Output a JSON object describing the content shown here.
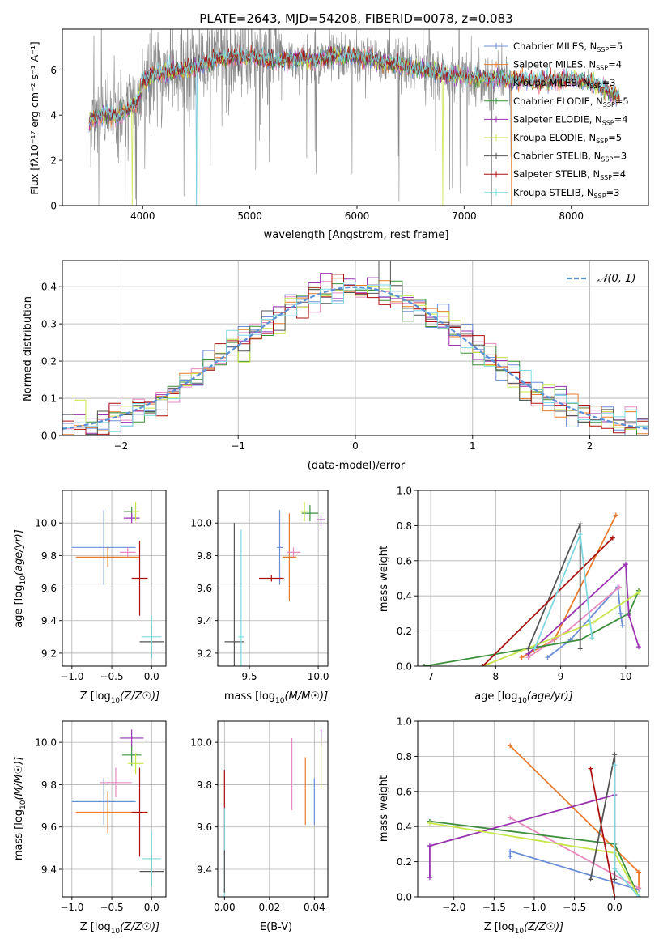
{
  "colors": {
    "chabrier_miles": "#6c8ed8",
    "salpeter_miles": "#e87b2c",
    "kroupa_miles": "#e88ac0",
    "chabrier_elodie": "#3d8f3d",
    "salpeter_elodie": "#9933b0",
    "kroupa_elodie": "#c8e64a",
    "chabrier_stelib": "#555555",
    "salpeter_stelib": "#aa1111",
    "kroupa_stelib": "#7fd8e0",
    "normal_curve": "#5b8fd6",
    "data_grey": "#888888",
    "grid": "#b0b0b0"
  },
  "chart_data": [
    {
      "id": "spectrum",
      "type": "line",
      "title": "PLATE=2643, MJD=54208, FIBERID=0078, z=0.083",
      "xlabel": "wavelength [Angstrom, rest frame]",
      "ylabel": "Flux [fλ10⁻¹⁷ erg cm⁻² s⁻¹ A⁻¹]",
      "xlim": [
        3250,
        8720
      ],
      "ylim": [
        0,
        7.8
      ],
      "xticks": [
        "4000",
        "5000",
        "6000",
        "7000",
        "8000"
      ],
      "yticks": [
        "0",
        "2",
        "4",
        "6"
      ],
      "grid": false,
      "legend_position": "right",
      "legend": [
        {
          "base": "Chabrier MILES, N",
          "sub": "SSP",
          "eq": "=5",
          "color": "chabrier_miles"
        },
        {
          "base": "Salpeter MILES, N",
          "sub": "SSP",
          "eq": "=4",
          "color": "salpeter_miles"
        },
        {
          "base": "Kroupa MILES, N",
          "sub": "SSP",
          "eq": "=3",
          "color": "kroupa_miles"
        },
        {
          "base": "Chabrier ELODIE, N",
          "sub": "SSP",
          "eq": "=5",
          "color": "chabrier_elodie"
        },
        {
          "base": "Salpeter ELODIE, N",
          "sub": "SSP",
          "eq": "=4",
          "color": "salpeter_elodie"
        },
        {
          "base": "Kroupa ELODIE, N",
          "sub": "SSP",
          "eq": "=5",
          "color": "kroupa_elodie"
        },
        {
          "base": "Chabrier STELIB, N",
          "sub": "SSP",
          "eq": "=3",
          "color": "chabrier_stelib"
        },
        {
          "base": "Salpeter STELIB, N",
          "sub": "SSP",
          "eq": "=4",
          "color": "salpeter_stelib"
        },
        {
          "base": "Kroupa STELIB, N",
          "sub": "SSP",
          "eq": "=3",
          "color": "kroupa_stelib"
        }
      ],
      "continuum": [
        [
          3500,
          3.7
        ],
        [
          3600,
          4.0
        ],
        [
          3700,
          4.0
        ],
        [
          3800,
          4.0
        ],
        [
          3900,
          4.4
        ],
        [
          3950,
          4.5
        ],
        [
          4000,
          5.5
        ],
        [
          4100,
          5.8
        ],
        [
          4300,
          5.9
        ],
        [
          4500,
          6.1
        ],
        [
          4700,
          6.5
        ],
        [
          4800,
          6.5
        ],
        [
          5000,
          6.6
        ],
        [
          5200,
          6.4
        ],
        [
          5400,
          6.5
        ],
        [
          5600,
          6.4
        ],
        [
          5800,
          6.6
        ],
        [
          6000,
          6.6
        ],
        [
          6200,
          6.4
        ],
        [
          6400,
          6.2
        ],
        [
          6600,
          6.0
        ],
        [
          6800,
          5.8
        ],
        [
          7000,
          5.7
        ],
        [
          7200,
          5.6
        ],
        [
          7400,
          5.6
        ],
        [
          7600,
          5.5
        ],
        [
          7800,
          5.5
        ],
        [
          8000,
          5.6
        ],
        [
          8200,
          5.4
        ],
        [
          8450,
          4.8
        ]
      ]
    },
    {
      "id": "residuals",
      "type": "histogram",
      "xlabel": "(data-model)/error",
      "ylabel": "Normed distribution",
      "xlim": [
        -2.5,
        2.5
      ],
      "ylim": [
        0,
        0.47
      ],
      "xticks": [
        "−2",
        "−1",
        "0",
        "1",
        "2"
      ],
      "yticks": [
        "0.0",
        "0.1",
        "0.2",
        "0.3",
        "0.4"
      ],
      "grid": true,
      "legend_position": "top-right",
      "legend_label": "𝒩(0, 1)",
      "bin_width": 0.1
    },
    {
      "id": "age_vs_Z",
      "type": "scatter",
      "xlabel_base": "Z [log",
      "xlabel_sub": "10",
      "xlabel_rest": "(Z/Z☉)]",
      "ylabel_base": "age  [log",
      "ylabel_sub": "10",
      "ylabel_rest": "(age/yr)]",
      "xlim": [
        -1.12,
        0.18
      ],
      "ylim": [
        9.12,
        10.2
      ],
      "xticks": [
        "−1.0",
        "−0.5",
        "0.0"
      ],
      "yticks": [
        "9.2",
        "9.4",
        "9.6",
        "9.8",
        "10.0"
      ],
      "grid": true,
      "points": [
        {
          "color": "chabrier_miles",
          "x": -0.6,
          "xe": 0.4,
          "y": 9.85,
          "ye": 0.23
        },
        {
          "color": "salpeter_miles",
          "x": -0.55,
          "xe": 0.4,
          "y": 9.79,
          "ye": 0.06
        },
        {
          "color": "kroupa_miles",
          "x": -0.3,
          "xe": 0.1,
          "y": 9.82,
          "ye": 0.03
        },
        {
          "color": "chabrier_elodie",
          "x": -0.25,
          "xe": 0.1,
          "y": 10.07,
          "ye": 0.03
        },
        {
          "color": "salpeter_elodie",
          "x": -0.25,
          "xe": 0.1,
          "y": 10.03,
          "ye": 0.03
        },
        {
          "color": "kroupa_elodie",
          "x": -0.2,
          "xe": 0.05,
          "y": 10.07,
          "ye": 0.06
        },
        {
          "color": "chabrier_stelib",
          "x": 0.0,
          "xe": 0.15,
          "y": 9.27,
          "ye": 0.1
        },
        {
          "color": "salpeter_stelib",
          "x": -0.15,
          "xe": 0.1,
          "y": 9.66,
          "ye": 0.23
        },
        {
          "color": "kroupa_stelib",
          "x": 0.0,
          "xe": 0.12,
          "y": 9.3,
          "ye": 0.13
        }
      ]
    },
    {
      "id": "age_vs_mass",
      "type": "scatter",
      "xlabel_base": "mass [log",
      "xlabel_sub": "10",
      "xlabel_rest": "(M/M☉)]",
      "xlim": [
        9.27,
        10.07
      ],
      "ylim": [
        9.12,
        10.2
      ],
      "xticks": [
        "9.5",
        "10.0"
      ],
      "yticks": [
        "9.2",
        "9.4",
        "9.6",
        "9.8",
        "10.0"
      ],
      "grid": true,
      "points": [
        {
          "color": "chabrier_miles",
          "x": 9.72,
          "xe": 0.02,
          "y": 9.85,
          "ye": 0.23
        },
        {
          "color": "salpeter_miles",
          "x": 9.79,
          "xe": 0.05,
          "y": 9.79,
          "ye": 0.27
        },
        {
          "color": "kroupa_miles",
          "x": 9.82,
          "xe": 0.05,
          "y": 9.82,
          "ye": 0.03
        },
        {
          "color": "chabrier_elodie",
          "x": 9.94,
          "xe": 0.06,
          "y": 10.06,
          "ye": 0.05
        },
        {
          "color": "salpeter_elodie",
          "x": 10.02,
          "xe": 0.03,
          "y": 10.02,
          "ye": 0.04
        },
        {
          "color": "kroupa_elodie",
          "x": 9.9,
          "xe": 0.03,
          "y": 10.07,
          "ye": 0.06
        },
        {
          "color": "chabrier_stelib",
          "x": 9.39,
          "xe": 0.07,
          "y": 9.27,
          "ye": 0.73
        },
        {
          "color": "salpeter_stelib",
          "x": 9.66,
          "xe": 0.09,
          "y": 9.66,
          "ye": 0.02
        },
        {
          "color": "kroupa_stelib",
          "x": 9.44,
          "xe": 0.02,
          "y": 9.3,
          "ye": 0.66
        }
      ]
    },
    {
      "id": "weights_vs_age",
      "type": "line",
      "xlabel_base": "age  [log",
      "xlabel_sub": "10",
      "xlabel_rest": "(age/yr)]",
      "ylabel": "mass weight",
      "xlim": [
        6.8,
        10.35
      ],
      "ylim": [
        0,
        1
      ],
      "xticks": [
        "7",
        "8",
        "9",
        "10"
      ],
      "yticks": [
        "0.0",
        "0.2",
        "0.4",
        "0.6",
        "0.8",
        "1.0"
      ],
      "grid": true,
      "series": [
        {
          "color": "chabrier_miles",
          "x": [
            8.8,
            9.15,
            9.88,
            9.92,
            9.95
          ],
          "y": [
            0.05,
            0.15,
            0.45,
            0.3,
            0.23
          ]
        },
        {
          "color": "salpeter_miles",
          "x": [
            8.4,
            8.9,
            9.85
          ],
          "y": [
            0.05,
            0.15,
            0.86
          ]
        },
        {
          "color": "kroupa_miles",
          "x": [
            8.5,
            9.1,
            9.9
          ],
          "y": [
            0.05,
            0.2,
            0.45
          ]
        },
        {
          "color": "chabrier_elodie",
          "x": [
            6.9,
            9.3,
            10.05,
            10.2
          ],
          "y": [
            0.0,
            0.15,
            0.3,
            0.43
          ]
        },
        {
          "color": "salpeter_elodie",
          "x": [
            8.5,
            10.0,
            10.05,
            10.2
          ],
          "y": [
            0.07,
            0.58,
            0.29,
            0.11
          ]
        },
        {
          "color": "kroupa_elodie",
          "x": [
            7.8,
            9.5,
            10.2
          ],
          "y": [
            0.0,
            0.25,
            0.42
          ]
        },
        {
          "color": "chabrier_stelib",
          "x": [
            8.5,
            9.3,
            9.3
          ],
          "y": [
            0.1,
            0.81,
            0.1
          ]
        },
        {
          "color": "salpeter_stelib",
          "x": [
            7.8,
            9.8
          ],
          "y": [
            0.0,
            0.73
          ]
        },
        {
          "color": "kroupa_stelib",
          "x": [
            8.6,
            9.3,
            9.48
          ],
          "y": [
            0.1,
            0.75,
            0.16
          ]
        }
      ]
    },
    {
      "id": "mass_vs_Z",
      "type": "scatter",
      "xlabel_base": "Z [log",
      "xlabel_sub": "10",
      "xlabel_rest": "(Z/Z☉)]",
      "ylabel_base": "mass [log",
      "ylabel_sub": "10",
      "ylabel_rest": "(M/M☉)]",
      "xlim": [
        -1.12,
        0.18
      ],
      "ylim": [
        9.27,
        10.1
      ],
      "xticks": [
        "−1.0",
        "−0.5",
        "0.0"
      ],
      "yticks": [
        "9.4",
        "9.6",
        "9.8",
        "10.0"
      ],
      "grid": true,
      "points": [
        {
          "color": "chabrier_miles",
          "x": -0.6,
          "xe": 0.4,
          "y": 9.72,
          "ye": 0.11
        },
        {
          "color": "salpeter_miles",
          "x": -0.55,
          "xe": 0.4,
          "y": 9.67,
          "ye": 0.1
        },
        {
          "color": "kroupa_miles",
          "x": -0.45,
          "xe": 0.2,
          "y": 9.81,
          "ye": 0.07
        },
        {
          "color": "chabrier_elodie",
          "x": -0.25,
          "xe": 0.12,
          "y": 9.94,
          "ye": 0.05
        },
        {
          "color": "salpeter_elodie",
          "x": -0.25,
          "xe": 0.15,
          "y": 10.02,
          "ye": 0.04
        },
        {
          "color": "kroupa_elodie",
          "x": -0.2,
          "xe": 0.1,
          "y": 9.9,
          "ye": 0.05
        },
        {
          "color": "chabrier_stelib",
          "x": 0.0,
          "xe": 0.15,
          "y": 9.39,
          "ye": 0.07
        },
        {
          "color": "salpeter_stelib",
          "x": -0.15,
          "xe": 0.1,
          "y": 9.67,
          "ye": 0.21
        },
        {
          "color": "kroupa_stelib",
          "x": 0.0,
          "xe": 0.12,
          "y": 9.45,
          "ye": 0.13
        }
      ]
    },
    {
      "id": "mass_vs_ebv",
      "type": "scatter",
      "xlabel": "E(B-V)",
      "xlim": [
        -0.003,
        0.046
      ],
      "ylim": [
        9.27,
        10.1
      ],
      "xticks": [
        "0.00",
        "0.02",
        "0.04"
      ],
      "yticks": [
        "9.4",
        "9.6",
        "9.8",
        "10.0"
      ],
      "grid": true,
      "points": [
        {
          "color": "salpeter_stelib",
          "x": 0.0,
          "xe": 0.0,
          "y": 9.67,
          "ye": 0.2
        },
        {
          "color": "kroupa_stelib",
          "x": 0.0,
          "xe": 0.0,
          "y": 9.45,
          "ye": 0.24
        },
        {
          "color": "chabrier_stelib",
          "x": 0.0,
          "xe": 0.0,
          "y": 9.39,
          "ye": 0.1
        },
        {
          "color": "kroupa_miles",
          "x": 0.03,
          "xe": 0.0,
          "y": 9.85,
          "ye": 0.17
        },
        {
          "color": "salpeter_miles",
          "x": 0.036,
          "xe": 0.0,
          "y": 9.77,
          "ye": 0.16
        },
        {
          "color": "chabrier_miles",
          "x": 0.04,
          "xe": 0.0,
          "y": 9.72,
          "ye": 0.11
        },
        {
          "color": "salpeter_elodie",
          "x": 0.043,
          "xe": 0.0,
          "y": 10.02,
          "ye": 0.04
        },
        {
          "color": "kroupa_elodie",
          "x": 0.043,
          "xe": 0.0,
          "y": 9.9,
          "ye": 0.12
        }
      ]
    },
    {
      "id": "weights_vs_Z",
      "type": "line",
      "xlabel_base": "Z [log",
      "xlabel_sub": "10",
      "xlabel_rest": "(Z/Z☉)]",
      "ylabel": "mass weight",
      "xlim": [
        -2.45,
        0.42
      ],
      "ylim": [
        0,
        1
      ],
      "xticks": [
        "−2.0",
        "−1.5",
        "−1.0",
        "−0.5",
        "0.0"
      ],
      "yticks": [
        "0.0",
        "0.2",
        "0.4",
        "0.6",
        "0.8",
        "1.0"
      ],
      "grid": true,
      "series": [
        {
          "color": "chabrier_miles",
          "x": [
            -1.3,
            -1.3,
            0.3,
            0.3
          ],
          "y": [
            0.23,
            0.26,
            0.04,
            0.05
          ]
        },
        {
          "color": "salpeter_miles",
          "x": [
            -1.3,
            0.3,
            0.3
          ],
          "y": [
            0.86,
            0.14,
            0.05
          ]
        },
        {
          "color": "kroupa_miles",
          "x": [
            -1.3,
            0.3
          ],
          "y": [
            0.45,
            0.05
          ]
        },
        {
          "color": "chabrier_elodie",
          "x": [
            -2.3,
            0.0,
            0.3
          ],
          "y": [
            0.43,
            0.3,
            0.0
          ]
        },
        {
          "color": "salpeter_elodie",
          "x": [
            -2.3,
            -2.3,
            0.0
          ],
          "y": [
            0.11,
            0.29,
            0.58
          ]
        },
        {
          "color": "kroupa_elodie",
          "x": [
            -2.3,
            0.0,
            0.3
          ],
          "y": [
            0.42,
            0.25,
            0.0
          ]
        },
        {
          "color": "chabrier_stelib",
          "x": [
            -0.3,
            0.0,
            0.0
          ],
          "y": [
            0.1,
            0.81,
            0.1
          ]
        },
        {
          "color": "salpeter_stelib",
          "x": [
            -0.3,
            0.0
          ],
          "y": [
            0.73,
            0.0
          ]
        },
        {
          "color": "kroupa_stelib",
          "x": [
            0.0,
            0.0,
            0.3
          ],
          "y": [
            0.75,
            0.16,
            0.0
          ]
        }
      ]
    }
  ]
}
